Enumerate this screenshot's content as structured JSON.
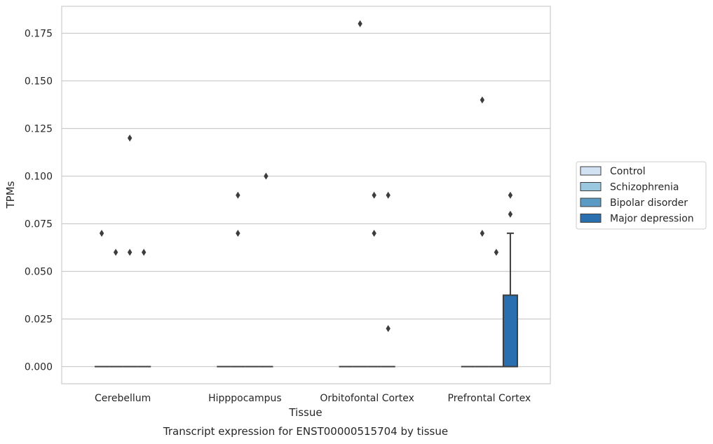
{
  "chart_data": {
    "type": "box",
    "title": "",
    "caption": "Transcript expression for ENST00000515704 by tissue",
    "xlabel": "Tissue",
    "ylabel": "TPMs",
    "ylim": [
      -0.009,
      0.189
    ],
    "yticks": [
      "0.000",
      "0.025",
      "0.050",
      "0.075",
      "0.100",
      "0.125",
      "0.150",
      "0.175"
    ],
    "categories": [
      "Cerebellum",
      "Hipppocampus",
      "Orbitofontal Cortex",
      "Prefrontal Cortex"
    ],
    "grid": "horizontal",
    "legend_position": "right",
    "series": [
      {
        "name": "Control",
        "color": "#d1e2f2",
        "boxes": [
          {
            "q1": 0,
            "median": 0,
            "q3": 0,
            "whisker_low": 0,
            "whisker_high": 0,
            "outliers": [
              0.07
            ]
          },
          {
            "q1": 0,
            "median": 0,
            "q3": 0,
            "whisker_low": 0,
            "whisker_high": 0,
            "outliers": []
          },
          {
            "q1": 0,
            "median": 0,
            "q3": 0,
            "whisker_low": 0,
            "whisker_high": 0,
            "outliers": []
          },
          {
            "q1": 0,
            "median": 0,
            "q3": 0,
            "whisker_low": 0,
            "whisker_high": 0,
            "outliers": []
          }
        ]
      },
      {
        "name": "Schizophrenia",
        "color": "#9ac8df",
        "boxes": [
          {
            "q1": 0,
            "median": 0,
            "q3": 0,
            "whisker_low": 0,
            "whisker_high": 0,
            "outliers": [
              0.06
            ]
          },
          {
            "q1": 0,
            "median": 0,
            "q3": 0,
            "whisker_low": 0,
            "whisker_high": 0,
            "outliers": [
              0.09,
              0.07
            ]
          },
          {
            "q1": 0,
            "median": 0,
            "q3": 0,
            "whisker_low": 0,
            "whisker_high": 0,
            "outliers": [
              0.18
            ]
          },
          {
            "q1": 0,
            "median": 0,
            "q3": 0,
            "whisker_low": 0,
            "whisker_high": 0,
            "outliers": [
              0.14,
              0.07
            ]
          }
        ]
      },
      {
        "name": "Bipolar disorder",
        "color": "#5a9ac4",
        "boxes": [
          {
            "q1": 0,
            "median": 0,
            "q3": 0,
            "whisker_low": 0,
            "whisker_high": 0,
            "outliers": [
              0.12,
              0.06
            ]
          },
          {
            "q1": 0,
            "median": 0,
            "q3": 0,
            "whisker_low": 0,
            "whisker_high": 0,
            "outliers": []
          },
          {
            "q1": 0,
            "median": 0,
            "q3": 0,
            "whisker_low": 0,
            "whisker_high": 0,
            "outliers": [
              0.09,
              0.07
            ]
          },
          {
            "q1": 0,
            "median": 0,
            "q3": 0,
            "whisker_low": 0,
            "whisker_high": 0,
            "outliers": [
              0.06
            ]
          }
        ]
      },
      {
        "name": "Major depression",
        "color": "#2a70b0",
        "boxes": [
          {
            "q1": 0,
            "median": 0,
            "q3": 0,
            "whisker_low": 0,
            "whisker_high": 0,
            "outliers": [
              0.06
            ]
          },
          {
            "q1": 0,
            "median": 0,
            "q3": 0,
            "whisker_low": 0,
            "whisker_high": 0,
            "outliers": [
              0.1
            ]
          },
          {
            "q1": 0,
            "median": 0,
            "q3": 0,
            "whisker_low": 0,
            "whisker_high": 0,
            "outliers": [
              0.09,
              0.02
            ]
          },
          {
            "q1": 0,
            "median": 0,
            "q3": 0.0375,
            "whisker_low": 0,
            "whisker_high": 0.07,
            "outliers": [
              0.09,
              0.08
            ]
          }
        ]
      }
    ]
  }
}
